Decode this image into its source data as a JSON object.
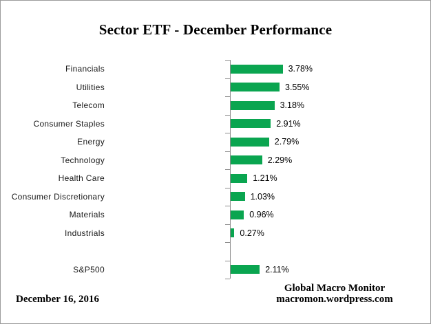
{
  "title": "Sector ETF - December Performance",
  "chart_data": {
    "type": "bar",
    "orientation": "horizontal",
    "categories": [
      "Financials",
      "Utilities",
      "Telecom",
      "Consumer Staples",
      "Energy",
      "Technology",
      "Health Care",
      "Consumer Discretionary",
      "Materials",
      "Industrials",
      "S&P500"
    ],
    "values": [
      3.78,
      3.55,
      3.18,
      2.91,
      2.79,
      2.29,
      1.21,
      1.03,
      0.96,
      0.27,
      2.11
    ],
    "value_labels": [
      "3.78%",
      "3.55%",
      "3.18%",
      "2.91%",
      "2.79%",
      "2.29%",
      "1.21%",
      "1.03%",
      "0.96%",
      "0.27%",
      "2.11%"
    ],
    "title": "Sector ETF - December Performance",
    "xlabel": "",
    "ylabel": "",
    "bar_color": "#0aa550",
    "axis_color": "#8c8c8c",
    "grid": "off",
    "legend": "none",
    "value_labels_position": "right-of-bar",
    "note": "S&P500 row separated from sector rows by one blank row"
  },
  "footer": {
    "date": "December 16, 2016",
    "credit_line1": "Global Macro Monitor",
    "credit_line2": "macromon.wordpress.com"
  }
}
